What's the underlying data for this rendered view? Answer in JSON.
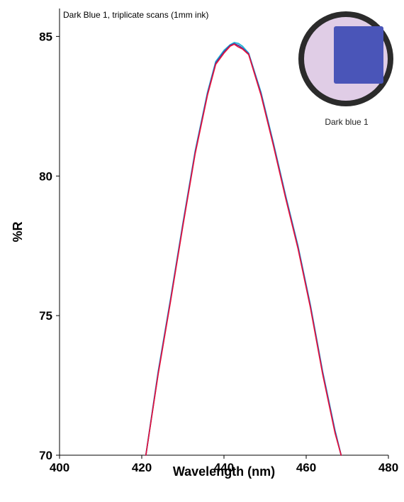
{
  "chart_data": {
    "type": "line",
    "title": "Dark Blue 1, triplicate scans (1mm ink)",
    "xlabel": "Wavelength (nm)",
    "ylabel": "%R",
    "xlim": [
      400,
      480
    ],
    "ylim": [
      70,
      86
    ],
    "xticks": [
      400,
      420,
      440,
      460,
      480
    ],
    "yticks": [
      70,
      75,
      80,
      85
    ],
    "grid": false,
    "legend": "none",
    "series": [
      {
        "color": "#1fb5d6",
        "x": [
          421.0,
          424.0,
          427.0,
          430.0,
          433.0,
          436.0,
          438.0,
          440.0,
          441.5,
          442.5,
          443.5,
          444.5,
          446.0,
          449.0,
          452.0,
          455.0,
          458.0,
          461.0,
          464.0,
          467.0,
          468.5
        ],
        "y": [
          70.0,
          73.0,
          75.6,
          78.3,
          80.9,
          83.0,
          84.1,
          84.5,
          84.7,
          84.78,
          84.75,
          84.65,
          84.4,
          83.0,
          81.2,
          79.3,
          77.5,
          75.4,
          73.0,
          70.9,
          70.0
        ]
      },
      {
        "color": "#4a3fa0",
        "x": [
          421.0,
          424.0,
          427.0,
          430.0,
          433.0,
          436.0,
          438.0,
          440.0,
          441.5,
          442.5,
          443.5,
          444.5,
          446.0,
          449.0,
          452.0,
          455.0,
          458.0,
          461.0,
          464.0,
          467.0,
          468.5
        ],
        "y": [
          70.0,
          72.95,
          75.55,
          78.25,
          80.85,
          82.95,
          84.05,
          84.45,
          84.68,
          84.74,
          84.68,
          84.58,
          84.38,
          82.95,
          81.15,
          79.25,
          77.45,
          75.35,
          72.95,
          70.85,
          70.0
        ]
      },
      {
        "color": "#e8123a",
        "x": [
          421.0,
          424.0,
          427.0,
          430.0,
          433.0,
          436.0,
          438.0,
          440.0,
          441.5,
          442.5,
          443.5,
          444.5,
          446.0,
          449.0,
          452.0,
          455.0,
          458.0,
          461.0,
          464.0,
          467.0,
          468.5
        ],
        "y": [
          70.0,
          72.9,
          75.5,
          78.2,
          80.8,
          82.9,
          84.0,
          84.4,
          84.65,
          84.72,
          84.62,
          84.55,
          84.35,
          82.9,
          81.1,
          79.2,
          77.4,
          75.3,
          72.9,
          70.8,
          70.0
        ]
      }
    ],
    "inset": {
      "caption": "Dark blue 1",
      "ring_color": "#2b2b2b",
      "background_color": "#e0cde6",
      "swatch_color": "#4a55b8"
    }
  }
}
